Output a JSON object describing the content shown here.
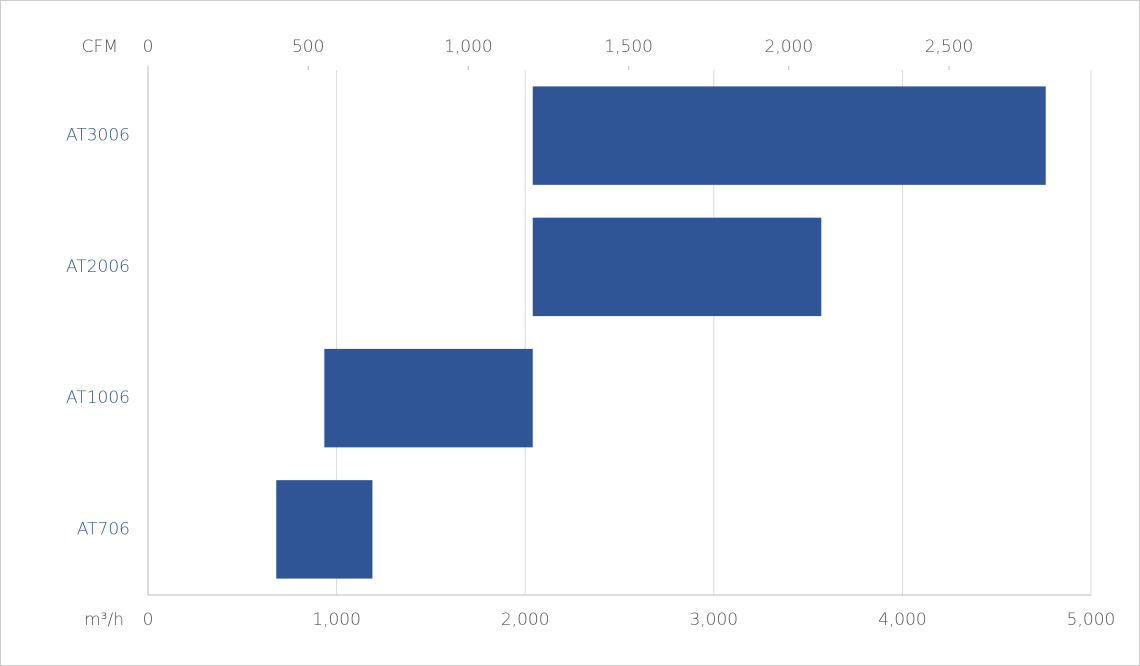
{
  "chart_data": {
    "type": "range-bar",
    "categories": [
      "AT3006",
      "AT2006",
      "AT1006",
      "AT706"
    ],
    "starts": [
      2040,
      2040,
      935,
      680
    ],
    "ends": [
      4760,
      3570,
      2040,
      1190
    ],
    "color": "#2f5597",
    "x_label": "m³/h",
    "xlim": [
      0,
      5000
    ],
    "xticks": [
      0,
      {
        "value": 1000,
        "label": "1,000"
      },
      {
        "value": 2000,
        "label": "2,000"
      },
      {
        "value": 3000,
        "label": "3,000"
      },
      {
        "value": 4000,
        "label": "4,000"
      },
      {
        "value": 5000,
        "label": "5,000"
      }
    ],
    "x2_label": "CFM",
    "x2lim": [
      0,
      2943
    ],
    "x2ticks": [
      0,
      500,
      {
        "value": 1000,
        "label": "1,000"
      },
      {
        "value": 1500,
        "label": "1,500"
      },
      {
        "value": 2000,
        "label": "2,000"
      },
      {
        "value": 2500,
        "label": "2,500"
      }
    ],
    "grid": true
  }
}
